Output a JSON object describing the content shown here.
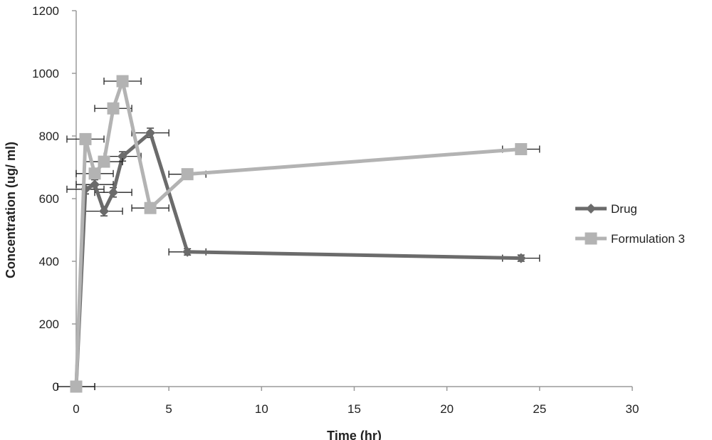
{
  "chart_data": {
    "type": "line",
    "xlabel": "Time (hr)",
    "ylabel": "Concentration (ug/ ml)",
    "xlim": [
      0,
      30
    ],
    "ylim": [
      0,
      1200
    ],
    "x_ticks": [
      "0",
      "5",
      "10",
      "15",
      "20",
      "25",
      "30"
    ],
    "y_ticks": [
      "0",
      "200",
      "400",
      "600",
      "800",
      "1000",
      "1200"
    ],
    "grid": false,
    "legend_position": "right",
    "series": [
      {
        "name": "Drug",
        "color": "#6b6b6b",
        "marker": "diamond",
        "x": [
          0,
          0.5,
          1,
          1.5,
          2,
          2.5,
          4,
          6,
          24
        ],
        "y": [
          0,
          630,
          645,
          560,
          620,
          735,
          810,
          430,
          410
        ],
        "x_error": [
          1,
          1,
          1,
          1,
          1,
          1,
          1,
          1,
          1
        ],
        "y_error": [
          0,
          15,
          15,
          15,
          15,
          15,
          15,
          10,
          10
        ]
      },
      {
        "name": "Formulation 3",
        "color": "#b3b3b3",
        "marker": "square",
        "x": [
          0,
          0.5,
          1,
          1.5,
          2,
          2.5,
          4,
          6,
          24
        ],
        "y": [
          0,
          790,
          680,
          718,
          888,
          975,
          570,
          678,
          758
        ],
        "x_error": [
          1,
          1,
          1,
          1,
          1,
          1,
          1,
          1,
          1
        ],
        "y_error": [
          0,
          10,
          10,
          10,
          10,
          10,
          10,
          10,
          10
        ]
      }
    ]
  }
}
